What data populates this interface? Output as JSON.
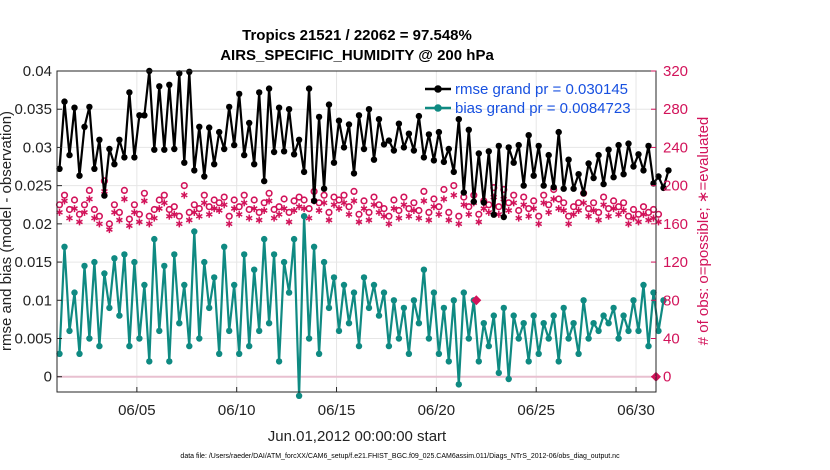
{
  "chart_data": {
    "type": "line",
    "title_line1": "Tropics 21521 / 22062 = 97.548%",
    "title_line2": "AIRS_SPECIFIC_HUMIDITY @ 200 hPa",
    "xlabel": "Jun.01,2012 00:00:00 start",
    "ylabel_left": "rmse and bias (model - observation)",
    "ylabel_right": "# of obs: o=possible; ∗=evaluated",
    "x_tick_labels": [
      "06/05",
      "06/10",
      "06/15",
      "06/20",
      "06/25",
      "06/30"
    ],
    "x_tick_values": [
      5,
      10,
      15,
      20,
      25,
      30
    ],
    "xlim": [
      1,
      31
    ],
    "ylim_left": [
      -0.002,
      0.04
    ],
    "ylim_right": [
      -16,
      320
    ],
    "y_left_tick_labels": [
      "0",
      "0.005",
      "0.01",
      "0.015",
      "0.02",
      "0.025",
      "0.03",
      "0.035",
      "0.04"
    ],
    "y_left_tick_values": [
      0,
      0.005,
      0.01,
      0.015,
      0.02,
      0.025,
      0.03,
      0.035,
      0.04
    ],
    "y_right_tick_labels": [
      "0",
      "40",
      "80",
      "120",
      "160",
      "200",
      "240",
      "280",
      "320"
    ],
    "y_right_tick_values": [
      0,
      40,
      80,
      120,
      160,
      200,
      240,
      280,
      320
    ],
    "legend": [
      {
        "label": "rmse grand pr = 0.030145",
        "color": "#000000"
      },
      {
        "label": "bias grand pr = 0.0084723",
        "color": "#0f8a82"
      }
    ],
    "colors": {
      "rmse": "#000000",
      "bias": "#0f8a82",
      "obs": "#d2135a"
    },
    "footer": "data file: /Users/raeder/DAI/ATM_forcXX/CAM6_setup/f.e21.FHIST_BGC.f09_025.CAM6assim.011/Diags_NTrS_2012-06/obs_diag_output.nc",
    "series": [
      {
        "name": "rmse",
        "t_start": 1.125,
        "t_step": 0.25,
        "values": [
          0.0272,
          0.036,
          0.029,
          0.0352,
          0.0263,
          0.0327,
          0.0353,
          0.0272,
          0.031,
          0.0237,
          0.0298,
          0.0278,
          0.031,
          0.0287,
          0.0372,
          0.0287,
          0.0342,
          0.0342,
          0.04,
          0.0297,
          0.038,
          0.0297,
          0.0382,
          0.0298,
          0.0397,
          0.028,
          0.0399,
          0.027,
          0.0327,
          0.0262,
          0.0326,
          0.0278,
          0.032,
          0.0298,
          0.0353,
          0.0303,
          0.037,
          0.029,
          0.0332,
          0.0278,
          0.0372,
          0.0256,
          0.0377,
          0.0294,
          0.0352,
          0.0295,
          0.035,
          0.0291,
          0.031,
          0.0268,
          0.0377,
          0.023,
          0.034,
          0.0246,
          0.0356,
          0.028,
          0.0335,
          0.03,
          0.033,
          0.0266,
          0.0342,
          0.0298,
          0.035,
          0.0284,
          0.0337,
          0.0304,
          0.0309,
          0.0296,
          0.0331,
          0.03,
          0.0318,
          0.0296,
          0.0341,
          0.0287,
          0.0317,
          0.0283,
          0.032,
          0.0281,
          0.0298,
          0.0268,
          0.0337,
          0.0241,
          0.0323,
          0.0229,
          0.0292,
          0.0228,
          0.0295,
          0.0212,
          0.0302,
          0.0209,
          0.03,
          0.028,
          0.0303,
          0.025,
          0.0316,
          0.0263,
          0.0302,
          0.025,
          0.029,
          0.0248,
          0.032,
          0.0246,
          0.0284,
          0.0246,
          0.0265,
          0.024,
          0.0279,
          0.026,
          0.029,
          0.0252,
          0.0297,
          0.0261,
          0.0303,
          0.0265,
          0.0305,
          0.0275,
          0.0291,
          0.027,
          0.0302,
          0.0253,
          0.0262,
          0.0247,
          0.027
        ]
      },
      {
        "name": "bias",
        "t_start": 1.125,
        "t_step": 0.25,
        "values": [
          0.003,
          0.017,
          0.006,
          0.011,
          0.003,
          0.0145,
          0.005,
          0.015,
          0.004,
          0.0135,
          0.009,
          0.0155,
          0.008,
          0.016,
          0.004,
          0.015,
          0.005,
          0.012,
          0.002,
          0.018,
          0.006,
          0.0145,
          0.002,
          0.016,
          0.007,
          0.012,
          0.004,
          0.019,
          0.005,
          0.015,
          0.009,
          0.013,
          0.003,
          0.017,
          0.006,
          0.012,
          0.003,
          0.016,
          0.004,
          0.014,
          0.006,
          0.018,
          0.007,
          0.016,
          0.002,
          0.015,
          0.011,
          0.018,
          -0.0025,
          0.021,
          0.005,
          0.017,
          0.003,
          0.015,
          0.009,
          0.013,
          0.006,
          0.012,
          0.007,
          0.011,
          0.004,
          0.013,
          0.009,
          0.012,
          0.008,
          0.011,
          0.004,
          0.01,
          0.005,
          0.009,
          0.003,
          0.01,
          0.007,
          0.014,
          0.005,
          0.011,
          0.003,
          0.009,
          0.002,
          0.01,
          -0.001,
          0.011,
          0.005,
          0.01,
          0.002,
          0.007,
          0.004,
          0.008,
          0.0005,
          0.009,
          -0.0003,
          0.008,
          0.005,
          0.007,
          0.002,
          0.008,
          0.003,
          0.007,
          0.005,
          0.008,
          0.002,
          0.009,
          0.005,
          0.007,
          0.003,
          0.01,
          0.005,
          0.007,
          0.006,
          0.008,
          0.007,
          0.009,
          0.005,
          0.008,
          0.006,
          0.01,
          0.006,
          0.012,
          0.004,
          0.011,
          0.006,
          0.01
        ]
      },
      {
        "name": "obs_possible",
        "t_start": 1.125,
        "t_step": 0.25,
        "values": [
          180,
          190,
          175,
          185,
          170,
          180,
          195,
          175,
          168,
          205,
          160,
          180,
          172,
          195,
          165,
          180,
          170,
          192,
          168,
          175,
          185,
          190,
          175,
          178,
          168,
          200,
          172,
          180,
          176,
          190,
          178,
          185,
          182,
          188,
          168,
          185,
          178,
          190,
          175,
          185,
          172,
          182,
          192,
          175,
          178,
          186,
          172,
          184,
          188,
          185,
          176,
          194,
          182,
          190,
          172,
          188,
          185,
          190,
          178,
          194,
          170,
          184,
          172,
          188,
          180,
          176,
          168,
          185,
          174,
          188,
          176,
          182,
          174,
          194,
          172,
          186,
          178,
          196,
          172,
          200,
          168,
          188,
          178,
          190,
          170,
          184,
          180,
          198,
          178,
          196,
          182,
          190,
          174,
          188,
          176,
          184,
          168,
          190,
          180,
          196,
          186,
          182,
          168,
          178,
          182,
          192,
          176,
          182,
          172,
          188,
          176,
          184,
          178,
          182,
          168,
          175,
          170,
          178,
          172,
          175,
          170
        ]
      },
      {
        "name": "obs_evaluated",
        "t_start": 1.125,
        "t_step": 0.25,
        "values": [
          172,
          184,
          166,
          176,
          162,
          172,
          186,
          166,
          160,
          194,
          154,
          172,
          164,
          186,
          158,
          172,
          162,
          184,
          160,
          166,
          176,
          182,
          168,
          170,
          160,
          190,
          164,
          172,
          168,
          182,
          170,
          176,
          174,
          180,
          160,
          176,
          170,
          182,
          166,
          176,
          164,
          174,
          184,
          166,
          170,
          176,
          162,
          174,
          178,
          176,
          166,
          184,
          174,
          182,
          164,
          180,
          176,
          182,
          170,
          184,
          162,
          176,
          164,
          180,
          172,
          168,
          160,
          176,
          166,
          180,
          168,
          174,
          166,
          184,
          164,
          178,
          170,
          186,
          164,
          190,
          160,
          180,
          170,
          182,
          162,
          176,
          172,
          188,
          170,
          186,
          174,
          182,
          166,
          180,
          168,
          176,
          160,
          182,
          172,
          186,
          176,
          174,
          160,
          170,
          174,
          182,
          168,
          174,
          164,
          180,
          168,
          176,
          170,
          174,
          160,
          166,
          162,
          170,
          164,
          166,
          162
        ]
      },
      {
        "name": "obs_zero_marks",
        "points": [
          {
            "t": 22.0,
            "v": 80
          },
          {
            "t": 31.0,
            "v": 0
          }
        ]
      }
    ]
  }
}
